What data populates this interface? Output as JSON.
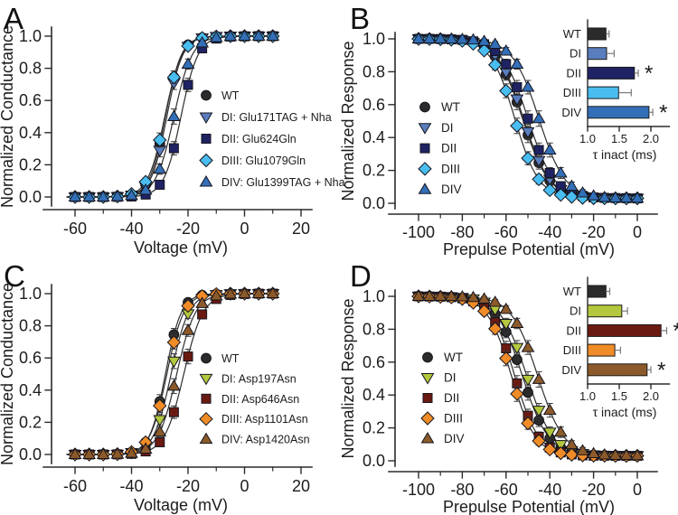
{
  "figure": {
    "background": "#ffffff"
  },
  "chart_data": [
    {
      "id": "A",
      "panel_label": "A",
      "type": "scatter",
      "curve": "ascending-sigmoid",
      "xlabel": "Voltage (mV)",
      "ylabel": "Normalized Conductance",
      "xlim": [
        -65,
        22
      ],
      "ylim": [
        0,
        1.05
      ],
      "xticks": [
        -60,
        -40,
        -20,
        0,
        20
      ],
      "xminor": [
        -50,
        -30,
        -10,
        10
      ],
      "yticks": [
        0.0,
        0.2,
        0.4,
        0.6,
        0.8,
        1.0
      ],
      "legend_position": "right-middle",
      "x": [
        -60,
        -55,
        -50,
        -45,
        -40,
        -35,
        -30,
        -25,
        -20,
        -15,
        -10,
        -5,
        0,
        5,
        10
      ],
      "series": [
        {
          "name": "WT",
          "label": "WT",
          "marker": "circle",
          "color": "#2b2b2b",
          "fit": {
            "v_half": -28,
            "k": 2.8,
            "direction": "asc"
          },
          "values": [
            0,
            0,
            0,
            0.002,
            0.014,
            0.076,
            0.329,
            0.745,
            0.946,
            0.99,
            0.998,
            1,
            1,
            1,
            1
          ]
        },
        {
          "name": "DI",
          "label": "DI: Glu171TAG + Nha",
          "marker": "triangle-down",
          "color": "#5a7dbd",
          "fit": {
            "v_half": -27.5,
            "k": 2.8,
            "direction": "asc"
          },
          "values": [
            0,
            0,
            0,
            0.002,
            0.011,
            0.064,
            0.29,
            0.709,
            0.936,
            0.989,
            0.998,
            1,
            1,
            1,
            1
          ]
        },
        {
          "name": "DII",
          "label": "DII: Glu624Gln",
          "marker": "square",
          "color": "#1f2363",
          "fit": {
            "v_half": -22.5,
            "k": 3.0,
            "direction": "asc"
          },
          "values": [
            0,
            0,
            0,
            0.001,
            0.003,
            0.015,
            0.076,
            0.303,
            0.697,
            0.924,
            0.985,
            0.997,
            0.999,
            1,
            1
          ]
        },
        {
          "name": "DIII",
          "label": "DIII: Glu1079Gln",
          "marker": "diamond",
          "color": "#49bdef",
          "fit": {
            "v_half": -28.2,
            "k": 3.0,
            "direction": "asc"
          },
          "values": [
            0,
            0,
            0,
            0.003,
            0.019,
            0.094,
            0.354,
            0.744,
            0.939,
            0.988,
            0.998,
            1,
            1,
            1,
            1
          ]
        },
        {
          "name": "DIV",
          "label": "DIV: Glu1399TAG + Nha",
          "marker": "triangle-up",
          "color": "#336fb7",
          "fit": {
            "v_half": -25,
            "k": 3.2,
            "direction": "asc"
          },
          "values": [
            0,
            0,
            0,
            0.002,
            0.009,
            0.042,
            0.173,
            0.5,
            0.826,
            0.958,
            0.991,
            0.998,
            1,
            1,
            1
          ]
        }
      ]
    },
    {
      "id": "B",
      "panel_label": "B",
      "type": "scatter",
      "curve": "descending-sigmoid",
      "xlabel": "Prepulse Potential (mV)",
      "ylabel": "Normalized Response",
      "xlim": [
        -105,
        5
      ],
      "ylim": [
        0,
        1.05
      ],
      "xticks": [
        -100,
        -80,
        -60,
        -40,
        -20,
        0
      ],
      "xminor": [
        -90,
        -70,
        -50,
        -30,
        -10
      ],
      "yticks": [
        0.0,
        0.2,
        0.4,
        0.6,
        0.8,
        1.0
      ],
      "legend_position": "left-middle",
      "x": [
        -100,
        -95,
        -90,
        -85,
        -80,
        -75,
        -70,
        -65,
        -60,
        -55,
        -50,
        -45,
        -40,
        -35,
        -30,
        -25,
        -20,
        -15,
        -10,
        -5,
        0
      ],
      "series": [
        {
          "name": "WT",
          "label": "WT",
          "marker": "circle",
          "color": "#2b2b2b",
          "fit": {
            "v_half": -52.5,
            "k": 6,
            "direction": "desc"
          },
          "values": [
            1,
            1,
            0.998,
            0.996,
            0.99,
            0.978,
            0.95,
            0.893,
            0.784,
            0.615,
            0.415,
            0.246,
            0.137,
            0.08,
            0.052,
            0.04,
            0.034,
            0.032,
            0.031,
            0.03,
            0.03
          ]
        },
        {
          "name": "DI",
          "label": "DI",
          "marker": "triangle-down",
          "color": "#5a7dbd",
          "fit": {
            "v_half": -52,
            "k": 6,
            "direction": "desc"
          },
          "values": [
            1,
            1,
            0.998,
            0.996,
            0.991,
            0.979,
            0.954,
            0.9,
            0.798,
            0.634,
            0.435,
            0.26,
            0.146,
            0.084,
            0.054,
            0.041,
            0.035,
            0.032,
            0.031,
            0.03,
            0.03
          ]
        },
        {
          "name": "DII",
          "label": "DII",
          "marker": "square",
          "color": "#1f2363",
          "fit": {
            "v_half": -50,
            "k": 6,
            "direction": "desc"
          },
          "values": [
            1,
            1,
            0.999,
            0.997,
            0.994,
            0.985,
            0.967,
            0.926,
            0.846,
            0.706,
            0.515,
            0.324,
            0.184,
            0.104,
            0.063,
            0.045,
            0.036,
            0.033,
            0.032,
            0.031,
            0.03
          ]
        },
        {
          "name": "DIII",
          "label": "DIII",
          "marker": "diamond",
          "color": "#49bdef",
          "fit": {
            "v_half": -56,
            "k": 5.5,
            "direction": "desc"
          },
          "values": [
            1,
            0.999,
            0.998,
            0.995,
            0.988,
            0.97,
            0.929,
            0.842,
            0.684,
            0.471,
            0.274,
            0.146,
            0.08,
            0.051,
            0.039,
            0.033,
            0.031,
            0.031,
            0.03,
            0.03,
            0.03
          ]
        },
        {
          "name": "DIV",
          "label": "DIV",
          "marker": "triangle-up",
          "color": "#336fb7",
          "fit": {
            "v_half": -45,
            "k": 6,
            "direction": "desc"
          },
          "values": [
            1,
            1,
            1,
            0.999,
            0.997,
            0.994,
            0.985,
            0.967,
            0.926,
            0.846,
            0.706,
            0.515,
            0.324,
            0.184,
            0.104,
            0.063,
            0.045,
            0.036,
            0.033,
            0.032,
            0.031
          ]
        }
      ],
      "inset": {
        "type": "bar",
        "orientation": "horizontal",
        "categories": [
          "WT",
          "DI",
          "DII",
          "DIII",
          "DIV"
        ],
        "values": [
          1.29,
          1.3,
          1.74,
          1.49,
          1.97
        ],
        "errors": [
          0.05,
          0.12,
          0.06,
          0.2,
          0.06
        ],
        "sig": [
          "",
          "",
          "*",
          "",
          "*"
        ],
        "colors": [
          "#2b2b2b",
          "#5a7dbd",
          "#1f2363",
          "#49bdef",
          "#336fb7"
        ],
        "xticks": [
          1.0,
          1.5,
          2.0
        ],
        "xlim": [
          1.0,
          2.25
        ],
        "xlabel": "τ inact (ms)"
      }
    },
    {
      "id": "C",
      "panel_label": "C",
      "type": "scatter",
      "curve": "ascending-sigmoid",
      "xlabel": "Voltage (mV)",
      "ylabel": "Normalized Conductance",
      "xlim": [
        -65,
        22
      ],
      "ylim": [
        0,
        1.05
      ],
      "xticks": [
        -60,
        -40,
        -20,
        0,
        20
      ],
      "xminor": [
        -50,
        -30,
        -10,
        10
      ],
      "yticks": [
        0.0,
        0.2,
        0.4,
        0.6,
        0.8,
        1.0
      ],
      "legend_position": "right-middle",
      "x": [
        -60,
        -55,
        -50,
        -45,
        -40,
        -35,
        -30,
        -25,
        -20,
        -15,
        -10,
        -5,
        0,
        5,
        10
      ],
      "series": [
        {
          "name": "WT",
          "label": "WT",
          "marker": "circle",
          "color": "#2b2b2b",
          "fit": {
            "v_half": -28,
            "k": 2.8,
            "direction": "asc"
          },
          "values": [
            0,
            0,
            0,
            0.002,
            0.014,
            0.076,
            0.329,
            0.745,
            0.946,
            0.99,
            0.998,
            1,
            1,
            1,
            1
          ]
        },
        {
          "name": "DI",
          "label": "DI: Asp197Asn",
          "marker": "triangle-down",
          "color": "#b5c83d",
          "fit": {
            "v_half": -26,
            "k": 3.1,
            "direction": "asc"
          },
          "values": [
            0,
            0,
            0,
            0.001,
            0.011,
            0.052,
            0.216,
            0.58,
            0.874,
            0.972,
            0.994,
            0.999,
            1,
            1,
            1
          ]
        },
        {
          "name": "DII",
          "label": "DII: Asp646Asn",
          "marker": "square",
          "color": "#6b1a12",
          "fit": {
            "v_half": -21.5,
            "k": 3.4,
            "direction": "asc"
          },
          "values": [
            0,
            0,
            0,
            0.001,
            0.004,
            0.019,
            0.076,
            0.263,
            0.609,
            0.871,
            0.967,
            0.992,
            0.998,
            1,
            1
          ]
        },
        {
          "name": "DIII",
          "label": "DIII: Asp1101Asn",
          "marker": "diamond",
          "color": "#f08c28",
          "fit": {
            "v_half": -27.5,
            "k": 3.0,
            "direction": "asc"
          },
          "values": [
            0,
            0,
            0,
            0.002,
            0.015,
            0.076,
            0.303,
            0.697,
            0.924,
            0.985,
            0.997,
            1,
            1,
            1,
            1
          ]
        },
        {
          "name": "DIV",
          "label": "DIV: Asp1420Asn",
          "marker": "triangle-up",
          "color": "#8c5a2a",
          "fit": {
            "v_half": -24,
            "k": 3.3,
            "direction": "asc"
          },
          "values": [
            0,
            0,
            0,
            0.002,
            0.008,
            0.034,
            0.14,
            0.425,
            0.771,
            0.939,
            0.986,
            0.997,
            0.999,
            1,
            1
          ]
        }
      ]
    },
    {
      "id": "D",
      "panel_label": "D",
      "type": "scatter",
      "curve": "descending-sigmoid",
      "xlabel": "Prepulse Potential (mV)",
      "ylabel": "Normalized Response",
      "xlim": [
        -105,
        5
      ],
      "ylim": [
        0,
        1.05
      ],
      "xticks": [
        -100,
        -80,
        -60,
        -40,
        -20,
        0
      ],
      "xminor": [
        -90,
        -70,
        -50,
        -30,
        -10
      ],
      "yticks": [
        0.0,
        0.2,
        0.4,
        0.6,
        0.8,
        1.0
      ],
      "legend_position": "left-middle",
      "x": [
        -100,
        -95,
        -90,
        -85,
        -80,
        -75,
        -70,
        -65,
        -60,
        -55,
        -50,
        -45,
        -40,
        -35,
        -30,
        -25,
        -20,
        -15,
        -10,
        -5,
        0
      ],
      "series": [
        {
          "name": "WT",
          "label": "WT",
          "marker": "circle",
          "color": "#2b2b2b",
          "fit": {
            "v_half": -52.5,
            "k": 6,
            "direction": "desc"
          },
          "values": [
            1,
            1,
            0.998,
            0.996,
            0.99,
            0.978,
            0.95,
            0.893,
            0.784,
            0.615,
            0.415,
            0.246,
            0.137,
            0.08,
            0.052,
            0.04,
            0.034,
            0.032,
            0.031,
            0.03,
            0.03
          ]
        },
        {
          "name": "DI",
          "label": "DI",
          "marker": "triangle-down",
          "color": "#b5c83d",
          "fit": {
            "v_half": -50.5,
            "k": 6,
            "direction": "desc"
          },
          "values": [
            1,
            1,
            0.999,
            0.997,
            0.993,
            0.984,
            0.964,
            0.921,
            0.835,
            0.689,
            0.495,
            0.307,
            0.174,
            0.098,
            0.061,
            0.044,
            0.036,
            0.033,
            0.032,
            0.031,
            0.031
          ]
        },
        {
          "name": "DII",
          "label": "DII",
          "marker": "square",
          "color": "#6b1a12",
          "fit": {
            "v_half": -56,
            "k": 5.5,
            "direction": "desc"
          },
          "values": [
            1,
            0.999,
            0.998,
            0.995,
            0.988,
            0.97,
            0.929,
            0.842,
            0.684,
            0.471,
            0.274,
            0.146,
            0.08,
            0.051,
            0.039,
            0.033,
            0.031,
            0.031,
            0.03,
            0.03,
            0.03
          ]
        },
        {
          "name": "DIII",
          "label": "DIII",
          "marker": "diamond",
          "color": "#f08c28",
          "fit": {
            "v_half": -57.5,
            "k": 5.5,
            "direction": "desc"
          },
          "values": [
            1,
            0.999,
            0.997,
            0.994,
            0.984,
            0.961,
            0.91,
            0.803,
            0.623,
            0.407,
            0.228,
            0.121,
            0.069,
            0.046,
            0.037,
            0.033,
            0.031,
            0.031,
            0.03,
            0.03,
            0.03
          ]
        },
        {
          "name": "DIV",
          "label": "DIV",
          "marker": "triangle-up",
          "color": "#8c5a2a",
          "fit": {
            "v_half": -45.5,
            "k": 6,
            "direction": "desc"
          },
          "values": [
            1,
            1,
            1,
            0.999,
            0.997,
            0.993,
            0.984,
            0.964,
            0.921,
            0.835,
            0.689,
            0.495,
            0.307,
            0.174,
            0.098,
            0.061,
            0.044,
            0.036,
            0.033,
            0.032,
            0.031
          ]
        }
      ],
      "inset": {
        "type": "bar",
        "orientation": "horizontal",
        "categories": [
          "WT",
          "DI",
          "DII",
          "DIII",
          "DIV"
        ],
        "values": [
          1.29,
          1.54,
          2.16,
          1.43,
          1.94
        ],
        "errors": [
          0.06,
          0.09,
          0.09,
          0.09,
          0.06
        ],
        "sig": [
          "",
          "",
          "*",
          "",
          "*"
        ],
        "colors": [
          "#2b2b2b",
          "#b5c83d",
          "#6b1a12",
          "#f08c28",
          "#8c5a2a"
        ],
        "xticks": [
          1.0,
          1.5,
          2.0
        ],
        "xlim": [
          1.0,
          2.25
        ],
        "xlabel": "τ inact (ms)"
      }
    }
  ]
}
